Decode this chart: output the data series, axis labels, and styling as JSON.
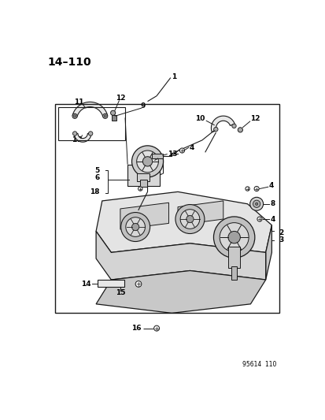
{
  "page_label": "14–110",
  "diagram_code": "95614  110",
  "bg_color": "#ffffff",
  "border_color": "#1a1a1a",
  "line_color": "#1a1a1a",
  "fig_width": 4.14,
  "fig_height": 5.33,
  "dpi": 100,
  "title_fontsize": 10,
  "label_fontsize": 6.5,
  "small_fontsize": 5.5
}
